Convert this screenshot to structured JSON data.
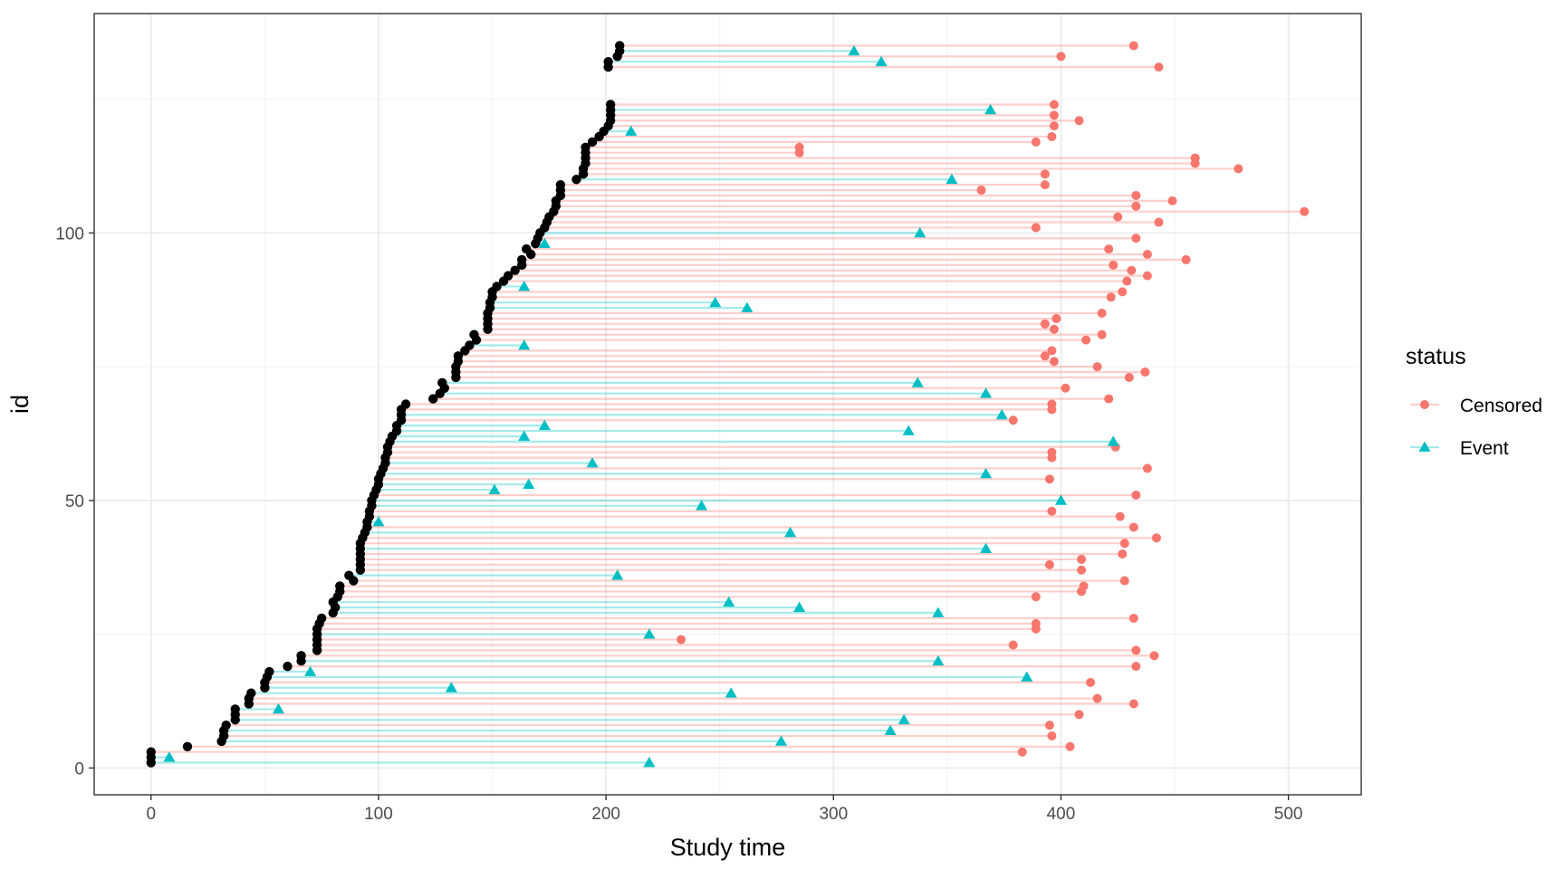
{
  "chart_data": {
    "type": "scatter",
    "xlabel": "Study time",
    "ylabel": "id",
    "xlim": [
      -25,
      532
    ],
    "ylim": [
      -5,
      141
    ],
    "x_ticks": [
      "0",
      "100",
      "200",
      "300",
      "400",
      "500"
    ],
    "y_ticks": [
      "0",
      "50",
      "100"
    ],
    "grid": "on",
    "legend": {
      "title": "status",
      "position": "right",
      "entries": [
        {
          "label": "Censored",
          "color": "#F8766D",
          "shape": "circle"
        },
        {
          "label": "Event",
          "color": "#00BFC4",
          "shape": "triangle"
        }
      ]
    },
    "colors": {
      "censored": "#F8766D",
      "event": "#00BFC4",
      "start": "#000000"
    },
    "description_of_encoding": null,
    "subjects": [
      [
        1,
        0,
        219,
        "Event"
      ],
      [
        2,
        0,
        8,
        "Event"
      ],
      [
        3,
        0,
        383,
        "Censored"
      ],
      [
        4,
        16,
        404,
        "Censored"
      ],
      [
        5,
        31,
        277,
        "Event"
      ],
      [
        6,
        32,
        396,
        "Censored"
      ],
      [
        7,
        32,
        325,
        "Event"
      ],
      [
        8,
        33,
        395,
        "Censored"
      ],
      [
        9,
        37,
        331,
        "Event"
      ],
      [
        10,
        37,
        408,
        "Censored"
      ],
      [
        11,
        37,
        56,
        "Event"
      ],
      [
        12,
        43,
        432,
        "Censored"
      ],
      [
        13,
        43,
        416,
        "Censored"
      ],
      [
        14,
        44,
        255,
        "Event"
      ],
      [
        15,
        50,
        132,
        "Event"
      ],
      [
        16,
        50,
        413,
        "Censored"
      ],
      [
        17,
        51,
        385,
        "Event"
      ],
      [
        18,
        52,
        70,
        "Event"
      ],
      [
        19,
        60,
        433,
        "Censored"
      ],
      [
        20,
        66,
        346,
        "Event"
      ],
      [
        21,
        66,
        441,
        "Censored"
      ],
      [
        22,
        73,
        433,
        "Censored"
      ],
      [
        23,
        73,
        379,
        "Censored"
      ],
      [
        24,
        73,
        233,
        "Censored"
      ],
      [
        25,
        73,
        219,
        "Event"
      ],
      [
        26,
        73,
        389,
        "Censored"
      ],
      [
        27,
        74,
        389,
        "Censored"
      ],
      [
        28,
        75,
        432,
        "Censored"
      ],
      [
        29,
        80,
        346,
        "Event"
      ],
      [
        30,
        81,
        285,
        "Event"
      ],
      [
        31,
        80,
        254,
        "Event"
      ],
      [
        32,
        82,
        389,
        "Censored"
      ],
      [
        33,
        83,
        409,
        "Censored"
      ],
      [
        34,
        83,
        410,
        "Censored"
      ],
      [
        35,
        89,
        428,
        "Censored"
      ],
      [
        36,
        87,
        205,
        "Event"
      ],
      [
        37,
        92,
        409,
        "Censored"
      ],
      [
        38,
        92,
        395,
        "Censored"
      ],
      [
        39,
        92,
        409,
        "Censored"
      ],
      [
        40,
        92,
        427,
        "Censored"
      ],
      [
        41,
        92,
        367,
        "Event"
      ],
      [
        42,
        92,
        428,
        "Censored"
      ],
      [
        43,
        93,
        442,
        "Censored"
      ],
      [
        44,
        94,
        281,
        "Event"
      ],
      [
        45,
        95,
        432,
        "Censored"
      ],
      [
        46,
        95,
        100,
        "Event"
      ],
      [
        47,
        96,
        426,
        "Censored"
      ],
      [
        48,
        96,
        396,
        "Censored"
      ],
      [
        49,
        97,
        242,
        "Event"
      ],
      [
        50,
        97,
        400,
        "Event"
      ],
      [
        51,
        98,
        433,
        "Censored"
      ],
      [
        52,
        99,
        151,
        "Event"
      ],
      [
        53,
        100,
        166,
        "Event"
      ],
      [
        54,
        100,
        395,
        "Censored"
      ],
      [
        55,
        101,
        367,
        "Event"
      ],
      [
        56,
        102,
        438,
        "Censored"
      ],
      [
        57,
        103,
        194,
        "Event"
      ],
      [
        58,
        103,
        396,
        "Censored"
      ],
      [
        59,
        104,
        396,
        "Censored"
      ],
      [
        60,
        104,
        424,
        "Censored"
      ],
      [
        61,
        105,
        423,
        "Event"
      ],
      [
        62,
        106,
        164,
        "Event"
      ],
      [
        63,
        108,
        333,
        "Event"
      ],
      [
        64,
        108,
        173,
        "Event"
      ],
      [
        65,
        110,
        379,
        "Censored"
      ],
      [
        66,
        110,
        374,
        "Event"
      ],
      [
        67,
        110,
        396,
        "Censored"
      ],
      [
        68,
        112,
        396,
        "Censored"
      ],
      [
        69,
        124,
        421,
        "Censored"
      ],
      [
        70,
        127,
        367,
        "Event"
      ],
      [
        71,
        129,
        402,
        "Censored"
      ],
      [
        72,
        128,
        337,
        "Event"
      ],
      [
        73,
        134,
        430,
        "Censored"
      ],
      [
        74,
        134,
        437,
        "Censored"
      ],
      [
        75,
        134,
        416,
        "Censored"
      ],
      [
        76,
        135,
        397,
        "Censored"
      ],
      [
        77,
        135,
        393,
        "Censored"
      ],
      [
        78,
        138,
        396,
        "Censored"
      ],
      [
        79,
        140,
        164,
        "Event"
      ],
      [
        80,
        143,
        411,
        "Censored"
      ],
      [
        81,
        142,
        418,
        "Censored"
      ],
      [
        82,
        148,
        397,
        "Censored"
      ],
      [
        83,
        148,
        393,
        "Censored"
      ],
      [
        84,
        148,
        398,
        "Censored"
      ],
      [
        85,
        148,
        418,
        "Censored"
      ],
      [
        86,
        149,
        262,
        "Event"
      ],
      [
        87,
        149,
        248,
        "Event"
      ],
      [
        88,
        150,
        422,
        "Censored"
      ],
      [
        89,
        150,
        427,
        "Censored"
      ],
      [
        90,
        152,
        164,
        "Event"
      ],
      [
        91,
        155,
        429,
        "Censored"
      ],
      [
        92,
        157,
        438,
        "Censored"
      ],
      [
        93,
        160,
        431,
        "Censored"
      ],
      [
        94,
        163,
        423,
        "Censored"
      ],
      [
        95,
        163,
        455,
        "Censored"
      ],
      [
        96,
        167,
        438,
        "Censored"
      ],
      [
        97,
        165,
        421,
        "Censored"
      ],
      [
        98,
        169,
        173,
        "Event"
      ],
      [
        99,
        170,
        433,
        "Censored"
      ],
      [
        100,
        171,
        338,
        "Event"
      ],
      [
        101,
        173,
        389,
        "Censored"
      ],
      [
        102,
        174,
        443,
        "Censored"
      ],
      [
        103,
        175,
        425,
        "Censored"
      ],
      [
        104,
        177,
        507,
        "Censored"
      ],
      [
        105,
        178,
        433,
        "Censored"
      ],
      [
        106,
        178,
        449,
        "Censored"
      ],
      [
        107,
        180,
        433,
        "Censored"
      ],
      [
        108,
        180,
        365,
        "Censored"
      ],
      [
        109,
        180,
        393,
        "Censored"
      ],
      [
        110,
        187,
        352,
        "Event"
      ],
      [
        111,
        190,
        393,
        "Censored"
      ],
      [
        112,
        190,
        478,
        "Censored"
      ],
      [
        113,
        191,
        459,
        "Censored"
      ],
      [
        114,
        191,
        459,
        "Censored"
      ],
      [
        115,
        191,
        285,
        "Censored"
      ],
      [
        116,
        191,
        285,
        "Censored"
      ],
      [
        117,
        194,
        389,
        "Censored"
      ],
      [
        118,
        197,
        396,
        "Censored"
      ],
      [
        119,
        199,
        211,
        "Event"
      ],
      [
        120,
        201,
        397,
        "Censored"
      ],
      [
        121,
        202,
        408,
        "Censored"
      ],
      [
        122,
        202,
        397,
        "Censored"
      ],
      [
        123,
        202,
        369,
        "Event"
      ],
      [
        124,
        202,
        397,
        "Censored"
      ],
      [
        131,
        201,
        443,
        "Censored"
      ],
      [
        132,
        201,
        321,
        "Event"
      ],
      [
        133,
        205,
        400,
        "Censored"
      ],
      [
        134,
        206,
        309,
        "Event"
      ],
      [
        135,
        206,
        432,
        "Censored"
      ]
    ]
  }
}
